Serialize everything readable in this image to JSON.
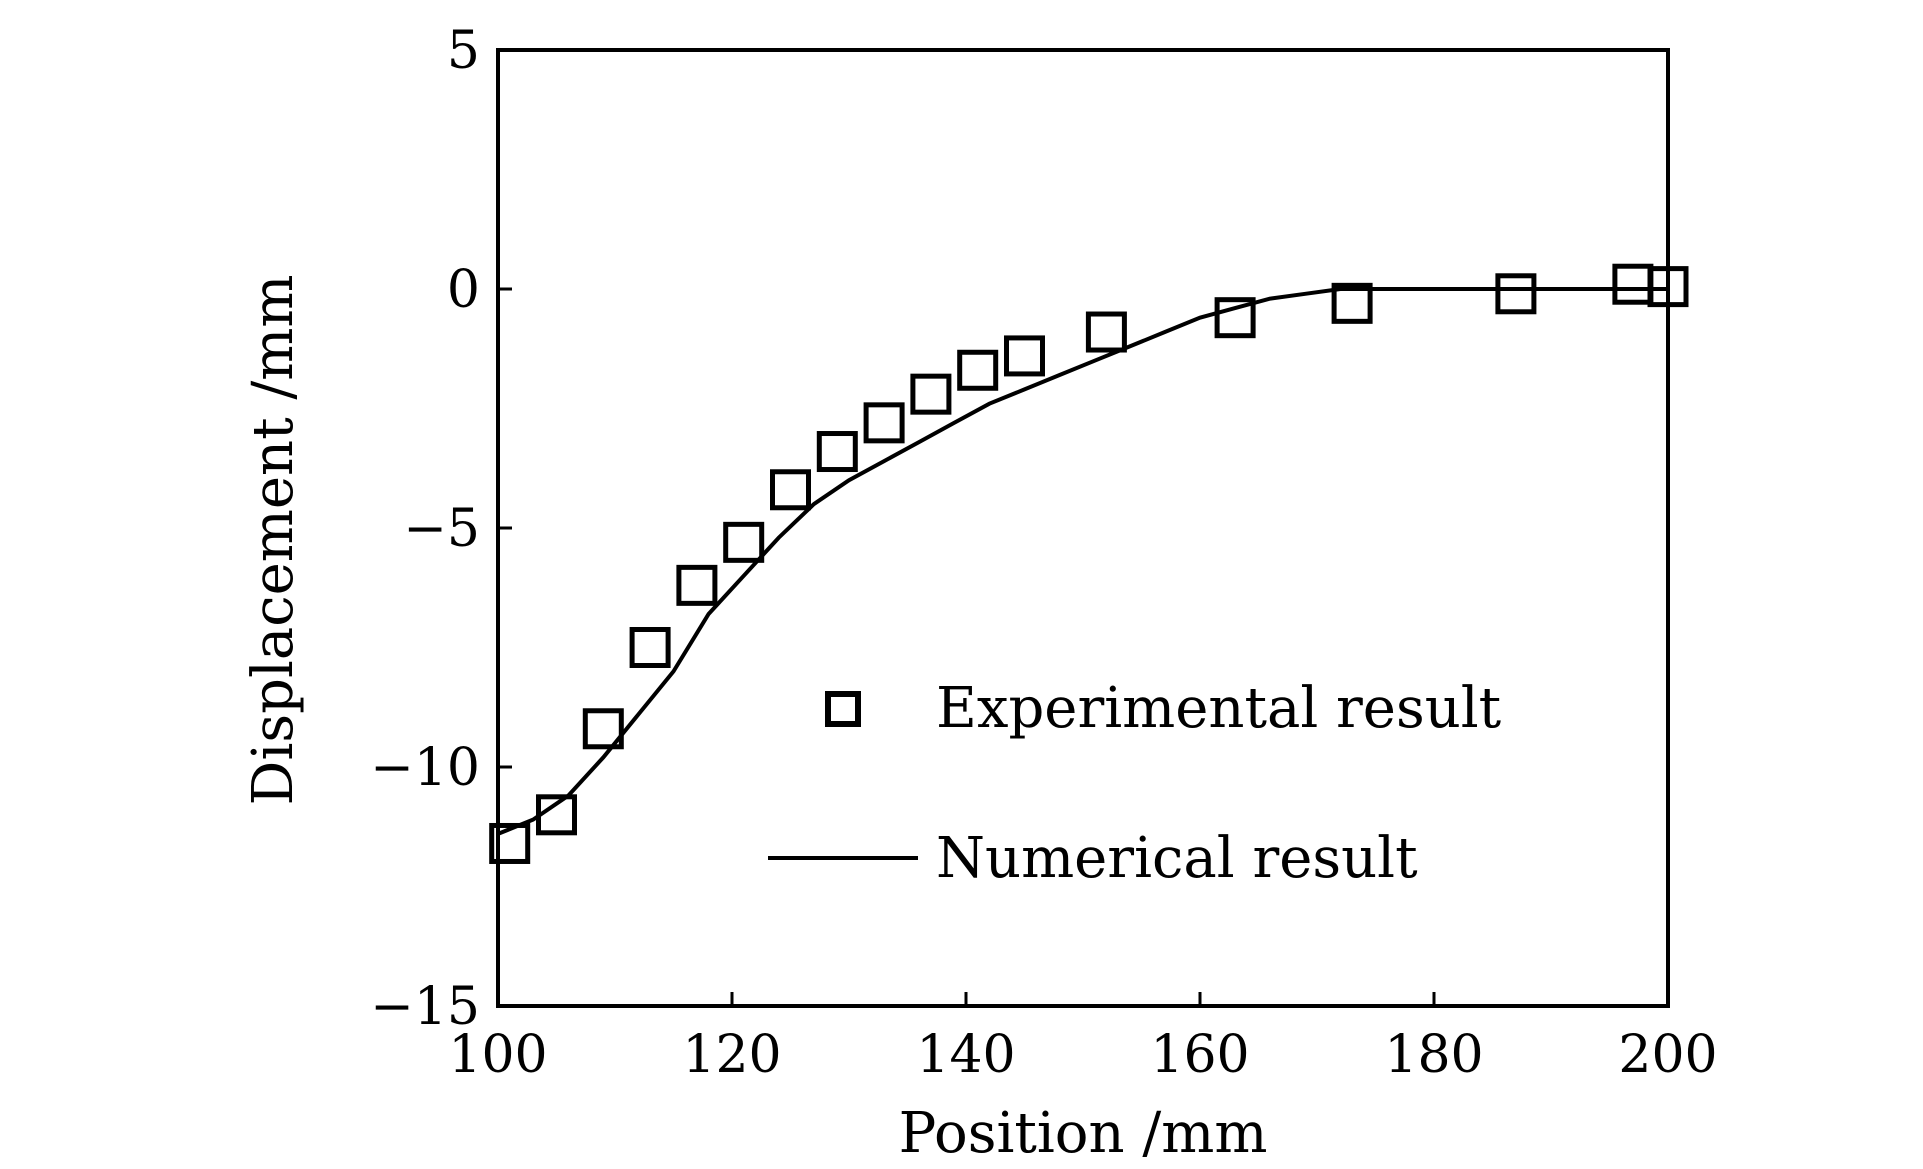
{
  "chart_data": {
    "type": "scatter",
    "xlabel": "Position /mm",
    "ylabel": "Displacement /mm",
    "xlim": [
      100,
      200
    ],
    "ylim": [
      -15,
      5
    ],
    "x_ticks": [
      "100",
      "120",
      "140",
      "160",
      "180",
      "200"
    ],
    "y_ticks": [
      "5",
      "0",
      "−5",
      "−10",
      "−15"
    ],
    "grid": false,
    "legend_position": "center-right",
    "colors": {
      "marks": "#000000",
      "background": "#ffffff"
    },
    "series": [
      {
        "name": "Experimental result",
        "type": "scatter",
        "marker": "square-open",
        "x": [
          101,
          105,
          109,
          113,
          117,
          121,
          125,
          129,
          133,
          137,
          141,
          145,
          152,
          163,
          173,
          187,
          197,
          200
        ],
        "y": [
          -11.6,
          -11.0,
          -9.2,
          -7.5,
          -6.2,
          -5.3,
          -4.2,
          -3.4,
          -2.8,
          -2.2,
          -1.7,
          -1.4,
          -0.9,
          -0.6,
          -0.3,
          -0.1,
          0.1,
          0.05
        ]
      },
      {
        "name": "Numerical result",
        "type": "line",
        "x": [
          100,
          103,
          106,
          109,
          112,
          115,
          118,
          121,
          124,
          127,
          130,
          133,
          136,
          139,
          142,
          145,
          148,
          151,
          154,
          157,
          160,
          163,
          166,
          169,
          172,
          176,
          180,
          185,
          190,
          195,
          200
        ],
        "y": [
          -11.4,
          -11.1,
          -10.6,
          -9.8,
          -8.9,
          -8.0,
          -6.8,
          -6.0,
          -5.2,
          -4.5,
          -4.0,
          -3.6,
          -3.2,
          -2.8,
          -2.4,
          -2.1,
          -1.8,
          -1.5,
          -1.2,
          -0.9,
          -0.6,
          -0.4,
          -0.2,
          -0.1,
          0.0,
          0.0,
          0.0,
          0.0,
          0.0,
          0.0,
          0.0
        ]
      }
    ]
  }
}
